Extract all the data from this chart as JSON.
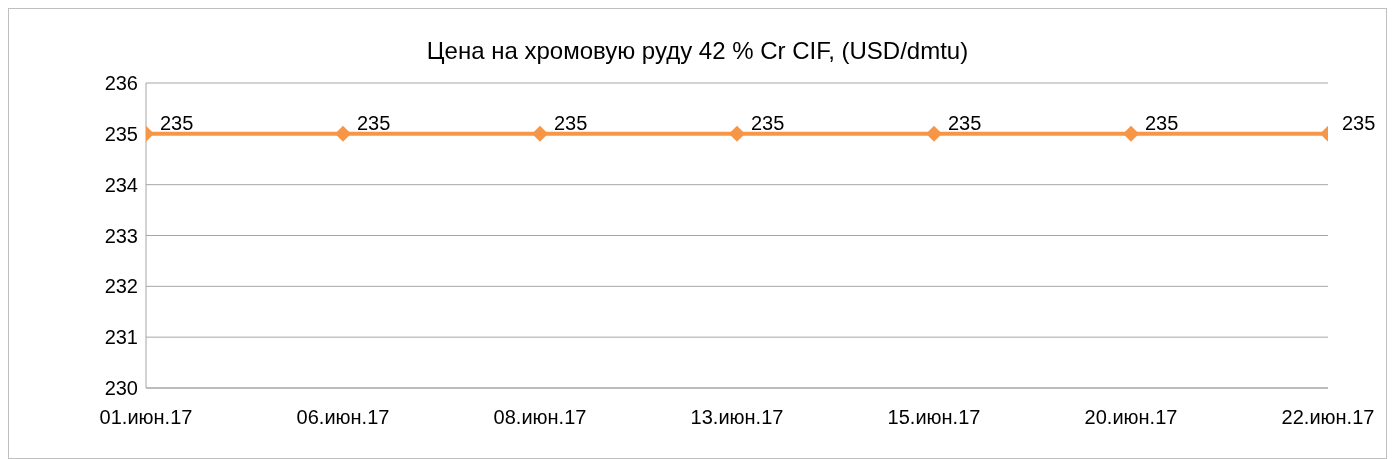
{
  "chart_data": {
    "type": "line",
    "title": "Цена на хромовую руду 42 % Cr CIF, (USD/dmtu)",
    "categories": [
      "01.июн.17",
      "06.июн.17",
      "08.июн.17",
      "13.июн.17",
      "15.июн.17",
      "20.июн.17",
      "22.июн.17"
    ],
    "series": [
      {
        "color": "#f79646",
        "values": [
          235,
          235,
          235,
          235,
          235,
          235,
          235
        ]
      }
    ],
    "ylim": [
      230,
      236
    ],
    "yticks": [
      230,
      231,
      232,
      233,
      234,
      235,
      236
    ],
    "grid": "y",
    "marker": "diamond",
    "line_style": "solid",
    "data_labels": true,
    "legend": false
  }
}
